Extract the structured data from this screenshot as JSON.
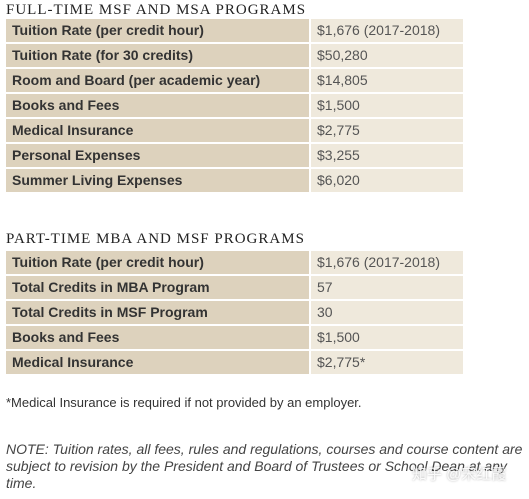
{
  "full_time": {
    "title": "FULL-TIME MSF AND MSA PROGRAMS",
    "rows": [
      {
        "label": "Tuition Rate (per credit hour)",
        "value": "$1,676 (2017-2018)"
      },
      {
        "label": "Tuition Rate (for 30 credits)",
        "value": "$50,280"
      },
      {
        "label": "Room and Board (per academic year)",
        "value": "$14,805"
      },
      {
        "label": "Books and Fees",
        "value": "$1,500"
      },
      {
        "label": "Medical Insurance",
        "value": "$2,775"
      },
      {
        "label": "Personal Expenses",
        "value": "$3,255"
      },
      {
        "label": "Summer Living Expenses",
        "value": "$6,020"
      }
    ]
  },
  "part_time": {
    "title": "PART-TIME MBA AND MSF PROGRAMS",
    "rows": [
      {
        "label": "Tuition Rate (per credit hour)",
        "value": "$1,676 (2017-2018)"
      },
      {
        "label": "Total Credits in MBA Program",
        "value": "57"
      },
      {
        "label": "Total Credits in MSF Program",
        "value": "30"
      },
      {
        "label": "Books and Fees",
        "value": "$1,500"
      },
      {
        "label": "Medical Insurance",
        "value": "$2,775*"
      }
    ]
  },
  "footnote": "*Medical Insurance is required if not provided by an employer.",
  "note": "NOTE: Tuition rates, all fees, rules and regulations, courses and course content are subject to revision by the President and Board of Trustees or School Dean at any time.",
  "watermark": "知乎 @宋红霞"
}
